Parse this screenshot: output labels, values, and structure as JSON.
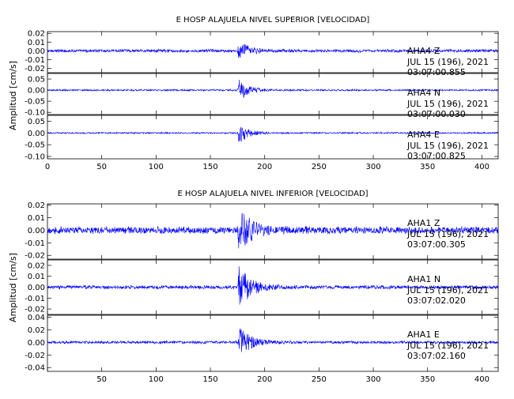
{
  "chart_data": [
    {
      "type": "line",
      "title": "E HOSP ALAJUELA NIVEL SUPERIOR [VELOCIDAD]",
      "ylabel": "Amplitud [cm/s]",
      "xlabel": "",
      "xlim": [
        0,
        415
      ],
      "x_ticks": [
        "0",
        "50",
        "100",
        "150",
        "200",
        "250",
        "300",
        "350",
        "400"
      ],
      "trace_color": "#0000ff",
      "panels": [
        {
          "ylim": [
            -0.025,
            0.022
          ],
          "y_ticks": [
            "0.02",
            "0.01",
            "0.00",
            "-0.01",
            "-0.02"
          ],
          "station": "AHA4",
          "component": "Z",
          "date": "JUL 15 (196), 2021",
          "time": "03:07:00.855",
          "series": {
            "onset_s": 175,
            "noise": 0.0016,
            "peak": 0.013,
            "decay_s": 9
          }
        },
        {
          "ylim": [
            -0.11,
            0.075
          ],
          "y_ticks": [
            "0.05",
            "0.00",
            "-0.05",
            "-0.10"
          ],
          "station": "AHA4",
          "component": "N",
          "date": "JUL 15 (196), 2021",
          "time": "03:07:00.030",
          "series": {
            "onset_s": 175,
            "noise": 0.0035,
            "peak": 0.06,
            "decay_s": 8
          }
        },
        {
          "ylim": [
            -0.11,
            0.075
          ],
          "y_ticks": [
            "0.05",
            "0.00",
            "-0.05",
            "-0.10"
          ],
          "station": "AHA4",
          "component": "E",
          "date": "JUL 15 (196), 2021",
          "time": "03:07:00.825",
          "series": {
            "onset_s": 175,
            "noise": 0.003,
            "peak": 0.055,
            "decay_s": 8
          }
        }
      ]
    },
    {
      "type": "line",
      "title": "E HOSP ALAJUELA NIVEL INFERIOR [VELOCIDAD]",
      "ylabel": "Amplitud [cm/s]",
      "xlabel": "",
      "xlim": [
        0,
        415
      ],
      "x_ticks": [
        "50",
        "100",
        "150",
        "200",
        "250",
        "300",
        "350",
        "400"
      ],
      "trace_color": "#0000ff",
      "panels": [
        {
          "ylim": [
            -0.023,
            0.021
          ],
          "y_ticks": [
            "0.02",
            "0.01",
            "0.00",
            "-0.01",
            "-0.02"
          ],
          "station": "AHA1",
          "component": "Z",
          "date": "JUL 15 (196), 2021",
          "time": "03:07:00.305",
          "series": {
            "onset_s": 175,
            "noise": 0.0025,
            "peak": 0.018,
            "decay_s": 12
          }
        },
        {
          "ylim": [
            -0.025,
            0.025
          ],
          "y_ticks": [
            "0.02",
            "0.01",
            "0.00",
            "-0.01",
            "-0.02"
          ],
          "station": "AHA1",
          "component": "N",
          "date": "JUL 15 (196), 2021",
          "time": "03:07:02.020",
          "series": {
            "onset_s": 175,
            "noise": 0.0015,
            "peak": 0.022,
            "decay_s": 11
          }
        },
        {
          "ylim": [
            -0.046,
            0.043
          ],
          "y_ticks": [
            "0.04",
            "0.02",
            "0.00",
            "-0.02",
            "-0.04"
          ],
          "station": "AHA1",
          "component": "E",
          "date": "JUL 15 (196), 2021",
          "time": "03:07:02.160",
          "series": {
            "onset_s": 175,
            "noise": 0.002,
            "peak": 0.03,
            "decay_s": 10
          }
        }
      ]
    }
  ]
}
